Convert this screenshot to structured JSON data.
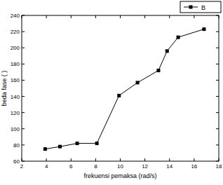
{
  "chart_data": {
    "type": "line",
    "x_label": "frekuensi pemaksa (rad/s)",
    "y_label": "beda fase ( )",
    "x": [
      3.9,
      5.1,
      6.5,
      8.1,
      9.9,
      11.4,
      13.1,
      13.8,
      14.7,
      16.8
    ],
    "series": [
      {
        "name": "B",
        "color": "#000000",
        "marker": "square",
        "line_style": "solid",
        "values": [
          75,
          78,
          82,
          82,
          141,
          157,
          172,
          196,
          213,
          223
        ]
      }
    ],
    "xlim": [
      2,
      18
    ],
    "xticks": [
      2,
      4,
      6,
      8,
      10,
      12,
      14,
      16,
      18
    ],
    "ylim": [
      60,
      240
    ],
    "yticks": [
      60,
      80,
      100,
      120,
      140,
      160,
      180,
      200,
      220,
      240
    ],
    "grid": false,
    "legend": "top-right"
  }
}
